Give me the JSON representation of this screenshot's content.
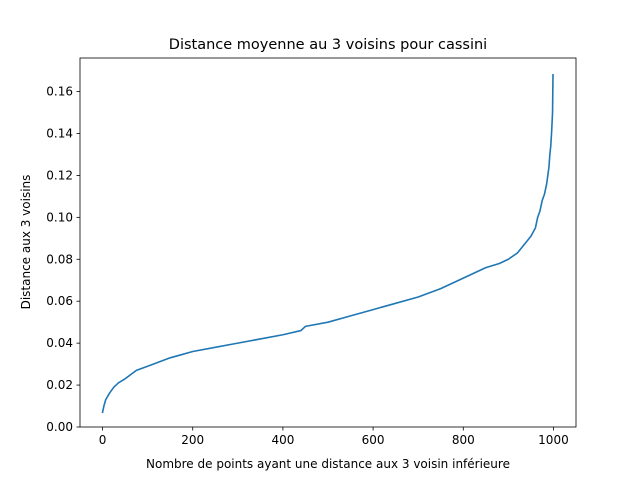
{
  "chart_data": {
    "type": "line",
    "title": "Distance moyenne au 3 voisins pour cassini",
    "xlabel": "Nombre de points ayant une distance aux 3 voisin inférieure",
    "ylabel": "Distance aux 3 voisins",
    "xlim": [
      -50,
      1050
    ],
    "ylim": [
      0.0,
      0.176
    ],
    "xticks": [
      0,
      200,
      400,
      600,
      800,
      1000
    ],
    "xtick_labels": [
      "0",
      "200",
      "400",
      "600",
      "800",
      "1000"
    ],
    "yticks": [
      0.0,
      0.02,
      0.04,
      0.06,
      0.08,
      0.1,
      0.12,
      0.14,
      0.16
    ],
    "ytick_labels": [
      "0.00",
      "0.02",
      "0.04",
      "0.06",
      "0.08",
      "0.10",
      "0.12",
      "0.14",
      "0.16"
    ],
    "grid": false,
    "legend": "none",
    "series": [
      {
        "color": "#1f77b4",
        "x": [
          0,
          3,
          7,
          15,
          25,
          35,
          50,
          75,
          100,
          125,
          150,
          175,
          200,
          250,
          300,
          350,
          400,
          440,
          450,
          500,
          550,
          600,
          650,
          700,
          750,
          800,
          850,
          880,
          900,
          920,
          935,
          950,
          960,
          965,
          970,
          975,
          980,
          985,
          990,
          992,
          994,
          996,
          998,
          999
        ],
        "y": [
          0.007,
          0.01,
          0.013,
          0.016,
          0.019,
          0.021,
          0.023,
          0.027,
          0.029,
          0.031,
          0.033,
          0.0345,
          0.036,
          0.038,
          0.04,
          0.042,
          0.044,
          0.046,
          0.048,
          0.05,
          0.053,
          0.056,
          0.059,
          0.062,
          0.066,
          0.071,
          0.076,
          0.078,
          0.08,
          0.083,
          0.087,
          0.091,
          0.095,
          0.1,
          0.103,
          0.108,
          0.111,
          0.116,
          0.124,
          0.13,
          0.134,
          0.141,
          0.15,
          0.168
        ]
      }
    ]
  }
}
